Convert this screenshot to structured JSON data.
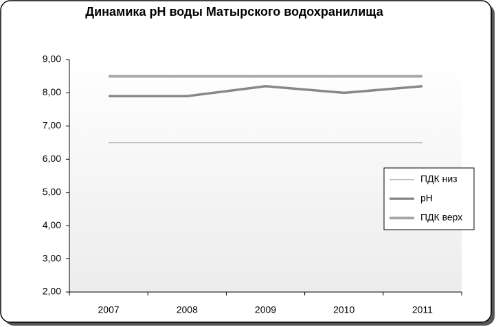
{
  "chart_data": {
    "type": "line",
    "title": "Динамика pH воды Матырского  водохранилища",
    "categories": [
      "2007",
      "2008",
      "2009",
      "2010",
      "2011"
    ],
    "series": [
      {
        "name": "ПДК низ",
        "color": "#c0c0c0",
        "width": 2,
        "values": [
          6.5,
          6.5,
          6.5,
          6.5,
          6.5
        ]
      },
      {
        "name": "pH",
        "color": "#888888",
        "width": 3.5,
        "values": [
          7.9,
          7.9,
          8.2,
          8.0,
          8.2
        ]
      },
      {
        "name": "ПДК верх",
        "color": "#a6a6a6",
        "width": 4,
        "values": [
          8.5,
          8.5,
          8.5,
          8.5,
          8.5
        ]
      }
    ],
    "ylim": [
      2,
      9
    ],
    "yticks": [
      {
        "value": 2,
        "label": "2,00"
      },
      {
        "value": 3,
        "label": "3,00"
      },
      {
        "value": 4,
        "label": "4,00"
      },
      {
        "value": 5,
        "label": "5,00"
      },
      {
        "value": 6,
        "label": "6,00"
      },
      {
        "value": 7,
        "label": "7,00"
      },
      {
        "value": 8,
        "label": "8,00"
      },
      {
        "value": 9,
        "label": "9,00"
      }
    ],
    "grid": false,
    "legend": "right"
  }
}
